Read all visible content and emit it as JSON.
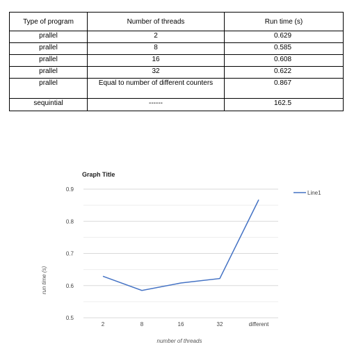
{
  "table": {
    "headers": [
      "Type of program",
      "Number of threads",
      "Run time (s)"
    ],
    "rows": [
      [
        "prallel",
        "2",
        "0.629"
      ],
      [
        "prallel",
        "8",
        "0.585"
      ],
      [
        "prallel",
        "16",
        "0.608"
      ],
      [
        "prallel",
        "32",
        "0.622"
      ],
      [
        "prallel",
        "Equal to number of different counters",
        "0.867"
      ],
      [
        "sequintial",
        "------",
        "162.5"
      ]
    ]
  },
  "chart_data": {
    "type": "line",
    "title": "Graph Title",
    "xlabel": "number of threads",
    "ylabel": "run time (s)",
    "categories": [
      "2",
      "8",
      "16",
      "32",
      "different"
    ],
    "series": [
      {
        "name": "Line1",
        "values": [
          0.629,
          0.585,
          0.608,
          0.622,
          0.867
        ],
        "color": "#4472c4"
      }
    ],
    "ylim": [
      0.5,
      0.9
    ],
    "yticks": [
      "0.9",
      "0.8",
      "0.7",
      "0.6",
      "0.5"
    ],
    "grid": true,
    "legend": "right"
  }
}
